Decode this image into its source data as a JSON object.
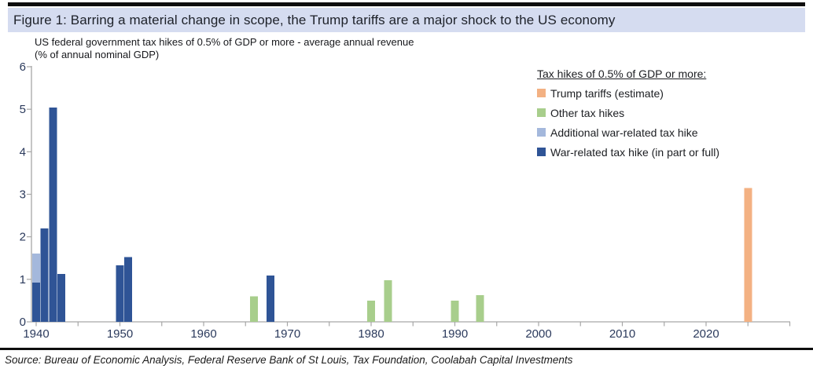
{
  "header": {
    "title": "Figure 1: Barring a material change in scope, the Trump tariffs are a major shock to the US economy"
  },
  "chart_data": {
    "type": "bar",
    "title": "US federal government tax hikes of 0.5% of GDP or more - average annual revenue",
    "title_line2": "(% of annual nominal GDP)",
    "xlabel": "",
    "ylabel": "% of annual nominal GDP",
    "ylim": [
      0,
      6
    ],
    "y_ticks": [
      0,
      1,
      2,
      3,
      4,
      5,
      6
    ],
    "x_major_ticks": [
      1940,
      1950,
      1960,
      1970,
      1980,
      1990,
      2000,
      2010,
      2020
    ],
    "x_minor_ticks": [
      1945,
      1955,
      1965,
      1975,
      1985,
      1995,
      2005,
      2015,
      2025,
      2030
    ],
    "x_range": [
      1939.4,
      2030
    ],
    "grid": false,
    "legend_position": "top-right",
    "series_colors": {
      "trump": "#F3B183",
      "other": "#A8CE8C",
      "additional_war": "#A4B8DC",
      "war": "#2F5496"
    },
    "bars": [
      {
        "year": 1940,
        "segments": [
          {
            "series": "war",
            "value": 0.92
          },
          {
            "series": "additional_war",
            "value": 0.69
          }
        ]
      },
      {
        "year": 1941,
        "segments": [
          {
            "series": "war",
            "value": 2.2
          }
        ]
      },
      {
        "year": 1942,
        "segments": [
          {
            "series": "war",
            "value": 5.04
          }
        ]
      },
      {
        "year": 1943,
        "segments": [
          {
            "series": "war",
            "value": 1.13
          }
        ]
      },
      {
        "year": 1950,
        "segments": [
          {
            "series": "war",
            "value": 1.33
          }
        ]
      },
      {
        "year": 1951,
        "segments": [
          {
            "series": "war",
            "value": 1.52
          }
        ]
      },
      {
        "year": 1966,
        "segments": [
          {
            "series": "other",
            "value": 0.6
          }
        ]
      },
      {
        "year": 1968,
        "segments": [
          {
            "series": "war",
            "value": 1.09
          }
        ]
      },
      {
        "year": 1980,
        "segments": [
          {
            "series": "other",
            "value": 0.5
          }
        ]
      },
      {
        "year": 1982,
        "segments": [
          {
            "series": "other",
            "value": 0.98
          }
        ]
      },
      {
        "year": 1990,
        "segments": [
          {
            "series": "other",
            "value": 0.5
          }
        ]
      },
      {
        "year": 1993,
        "segments": [
          {
            "series": "other",
            "value": 0.63
          }
        ]
      },
      {
        "year": 2025,
        "segments": [
          {
            "series": "trump",
            "value": 3.15
          }
        ]
      }
    ]
  },
  "legend": {
    "title": "Tax hikes of 0.5% of GDP or more:",
    "items": [
      {
        "label": "Trump tariffs (estimate)",
        "series": "trump",
        "color": "#F3B183"
      },
      {
        "label": "Other tax hikes",
        "series": "other",
        "color": "#A8CE8C"
      },
      {
        "label": "Additional war-related tax hike",
        "series": "additional_war",
        "color": "#A4B8DC"
      },
      {
        "label": "War-related tax hike (in part or full)",
        "series": "war",
        "color": "#2F5496"
      }
    ]
  },
  "footer": {
    "source": "Source: Bureau of Economic Analysis, Federal Reserve Bank of St Louis, Tax Foundation, Coolabah Capital Investments"
  },
  "colors": {
    "title_band": "#D5DCF0",
    "axis": "#A6A6A6",
    "tick_label": "#2B3A5C",
    "rule": "#0E0E0E"
  }
}
